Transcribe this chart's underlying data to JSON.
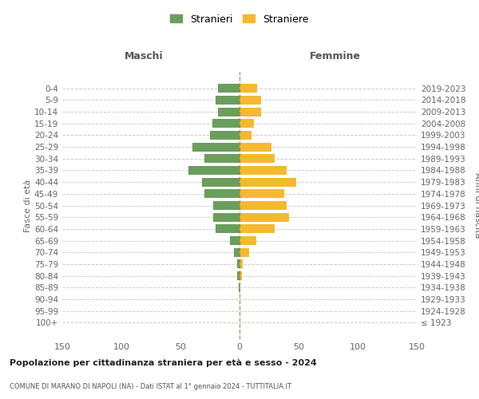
{
  "age_groups": [
    "100+",
    "95-99",
    "90-94",
    "85-89",
    "80-84",
    "75-79",
    "70-74",
    "65-69",
    "60-64",
    "55-59",
    "50-54",
    "45-49",
    "40-44",
    "35-39",
    "30-34",
    "25-29",
    "20-24",
    "15-19",
    "10-14",
    "5-9",
    "0-4"
  ],
  "birth_years": [
    "≤ 1923",
    "1924-1928",
    "1929-1933",
    "1934-1938",
    "1939-1943",
    "1944-1948",
    "1949-1953",
    "1954-1958",
    "1959-1963",
    "1964-1968",
    "1969-1973",
    "1974-1978",
    "1979-1983",
    "1984-1988",
    "1989-1993",
    "1994-1998",
    "1999-2003",
    "2004-2008",
    "2009-2013",
    "2014-2018",
    "2019-2023"
  ],
  "males": [
    0,
    0,
    0,
    1,
    2,
    2,
    5,
    8,
    20,
    22,
    22,
    30,
    32,
    43,
    30,
    40,
    25,
    23,
    18,
    20,
    18
  ],
  "females": [
    0,
    0,
    0,
    1,
    2,
    3,
    8,
    14,
    30,
    42,
    40,
    38,
    48,
    40,
    30,
    27,
    10,
    12,
    18,
    18,
    15
  ],
  "male_color": "#6a9e5c",
  "female_color": "#f5b830",
  "dashed_line_color": "#888844",
  "background_color": "#ffffff",
  "grid_color": "#cccccc",
  "title": "Popolazione per cittadinanza straniera per età e sesso - 2024",
  "subtitle": "COMUNE DI MARANO DI NAPOLI (NA) - Dati ISTAT al 1° gennaio 2024 - TUTTITALIA.IT",
  "ylabel_left": "Fasce di età",
  "ylabel_right": "Anni di nascita",
  "xlabel_maschi": "Maschi",
  "xlabel_femmine": "Femmine",
  "legend_stranieri": "Stranieri",
  "legend_straniere": "Straniere",
  "xlim": 150
}
